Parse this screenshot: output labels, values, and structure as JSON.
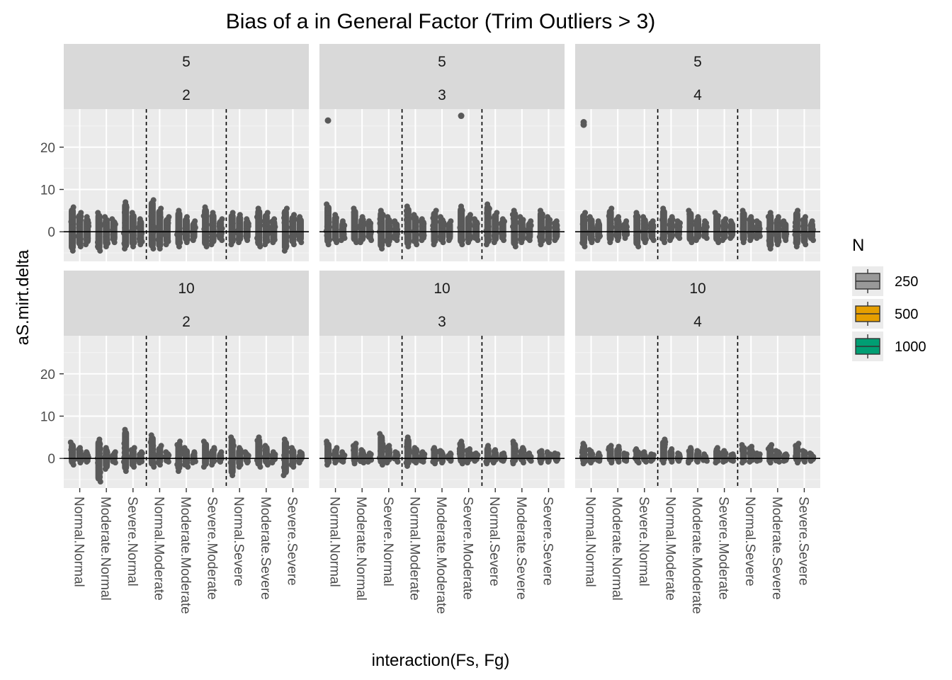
{
  "chart_data": {
    "type": "boxplot",
    "title": "Bias of a in General Factor (Trim Outliers > 3)",
    "xlabel": "interaction(Fs, Fg)",
    "ylabel": "aS.mirt.delta",
    "ylim": [
      -7,
      29
    ],
    "y_ticks": [
      0,
      10,
      20
    ],
    "categories": [
      "Normal.Normal",
      "Moderate.Normal",
      "Severe.Normal",
      "Normal.Moderate",
      "Moderate.Moderate",
      "Severe.Moderate",
      "Normal.Severe",
      "Moderate.Severe",
      "Severe.Severe"
    ],
    "reference_line_y": 0,
    "vlines_between_categories": [
      3.5,
      6.5
    ],
    "legend": {
      "title": "N",
      "placement": "right",
      "items": [
        {
          "label": "250",
          "color": "#999999"
        },
        {
          "label": "500",
          "color": "#E69F00"
        },
        {
          "label": "1000",
          "color": "#009E73"
        }
      ]
    },
    "point_color": "#595959",
    "facets": [
      {
        "top": "5",
        "bottom": "2",
        "ranges": [
          [
            [
              -4.5,
              5.8
            ],
            [
              -3.5,
              4.5
            ],
            [
              -3,
              3.5
            ]
          ],
          [
            [
              -4.5,
              4.5
            ],
            [
              -3.5,
              3.5
            ],
            [
              -2.5,
              3
            ]
          ],
          [
            [
              -4,
              7
            ],
            [
              -3.5,
              4.5
            ],
            [
              -3,
              3
            ]
          ],
          [
            [
              -4,
              7.5
            ],
            [
              -4,
              5.5
            ],
            [
              -3,
              3.5
            ]
          ],
          [
            [
              -3.5,
              5
            ],
            [
              -2.5,
              3.5
            ],
            [
              -2,
              2.5
            ]
          ],
          [
            [
              -3.5,
              5.8
            ],
            [
              -3,
              4.5
            ],
            [
              -2,
              3
            ]
          ],
          [
            [
              -3,
              4.5
            ],
            [
              -2.5,
              4
            ],
            [
              -2,
              3
            ]
          ],
          [
            [
              -3.5,
              5.5
            ],
            [
              -3,
              4.5
            ],
            [
              -2.5,
              3
            ]
          ],
          [
            [
              -4.5,
              5.5
            ],
            [
              -3,
              4
            ],
            [
              -2.5,
              3.5
            ]
          ]
        ],
        "outliers": []
      },
      {
        "top": "5",
        "bottom": "3",
        "ranges": [
          [
            [
              -3,
              6.5
            ],
            [
              -2.5,
              4
            ],
            [
              -2,
              2.5
            ]
          ],
          [
            [
              -2.5,
              5.5
            ],
            [
              -2.5,
              3.5
            ],
            [
              -2,
              2.5
            ]
          ],
          [
            [
              -4,
              5
            ],
            [
              -3,
              3.5
            ],
            [
              -2,
              2.5
            ]
          ],
          [
            [
              -3.5,
              6
            ],
            [
              -3,
              4
            ],
            [
              -2,
              3
            ]
          ],
          [
            [
              -3,
              5
            ],
            [
              -2.5,
              3.5
            ],
            [
              -2,
              2.5
            ]
          ],
          [
            [
              -3,
              6
            ],
            [
              -2.5,
              4
            ],
            [
              -2,
              3
            ]
          ],
          [
            [
              -3,
              6.5
            ],
            [
              -2.5,
              4.5
            ],
            [
              -2,
              3
            ]
          ],
          [
            [
              -3.5,
              5
            ],
            [
              -2.5,
              3.5
            ],
            [
              -2,
              2.5
            ]
          ],
          [
            [
              -3,
              5
            ],
            [
              -2.5,
              3.5
            ],
            [
              -2,
              2.5
            ]
          ]
        ],
        "outliers": [
          [
            0,
            26.3
          ],
          [
            5,
            27.4
          ]
        ]
      },
      {
        "top": "5",
        "bottom": "4",
        "ranges": [
          [
            [
              -3.5,
              4.5
            ],
            [
              -2.5,
              3.5
            ],
            [
              -2,
              2.5
            ]
          ],
          [
            [
              -2.5,
              5.5
            ],
            [
              -2,
              3.5
            ],
            [
              -1.5,
              2.5
            ]
          ],
          [
            [
              -3.5,
              4.5
            ],
            [
              -2.5,
              3.5
            ],
            [
              -2,
              2.5
            ]
          ],
          [
            [
              -2.5,
              5.5
            ],
            [
              -2,
              3.5
            ],
            [
              -1.5,
              2.5
            ]
          ],
          [
            [
              -2.5,
              5
            ],
            [
              -2,
              3.5
            ],
            [
              -1.5,
              2.5
            ]
          ],
          [
            [
              -2.5,
              4.5
            ],
            [
              -2,
              3
            ],
            [
              -1.5,
              2.5
            ]
          ],
          [
            [
              -2.5,
              5
            ],
            [
              -2,
              3.5
            ],
            [
              -1.5,
              2.5
            ]
          ],
          [
            [
              -4,
              4.5
            ],
            [
              -3,
              3.5
            ],
            [
              -2,
              2.5
            ]
          ],
          [
            [
              -3.5,
              5
            ],
            [
              -3,
              3.5
            ],
            [
              -2,
              2.5
            ]
          ]
        ],
        "outliers": [
          [
            0,
            25.3
          ],
          [
            0,
            25.9
          ]
        ]
      },
      {
        "top": "10",
        "bottom": "2",
        "ranges": [
          [
            [
              -1.5,
              3.8
            ],
            [
              -1,
              2.5
            ],
            [
              -0.8,
              1.5
            ]
          ],
          [
            [
              -5.5,
              4.5
            ],
            [
              -2.5,
              2.5
            ],
            [
              -1,
              1.5
            ]
          ],
          [
            [
              -3,
              6.8
            ],
            [
              -2,
              2.5
            ],
            [
              -1,
              1.5
            ]
          ],
          [
            [
              -2,
              5.5
            ],
            [
              -1.5,
              3
            ],
            [
              -0.8,
              1.5
            ]
          ],
          [
            [
              -3,
              4
            ],
            [
              -2,
              2.5
            ],
            [
              -1,
              1.5
            ]
          ],
          [
            [
              -2,
              4
            ],
            [
              -1.5,
              2.5
            ],
            [
              -0.8,
              1.5
            ]
          ],
          [
            [
              -4,
              5
            ],
            [
              -2,
              2.5
            ],
            [
              -1,
              1.5
            ]
          ],
          [
            [
              -2,
              5
            ],
            [
              -1.5,
              3
            ],
            [
              -1,
              1.5
            ]
          ],
          [
            [
              -4,
              4.5
            ],
            [
              -2,
              2.5
            ],
            [
              -1,
              1.5
            ]
          ]
        ],
        "outliers": []
      },
      {
        "top": "10",
        "bottom": "3",
        "ranges": [
          [
            [
              -1.5,
              4
            ],
            [
              -1,
              2.5
            ],
            [
              -0.8,
              1.5
            ]
          ],
          [
            [
              -1.2,
              3.5
            ],
            [
              -1,
              2
            ],
            [
              -0.8,
              1.2
            ]
          ],
          [
            [
              -1.5,
              5.8
            ],
            [
              -1,
              3
            ],
            [
              -0.8,
              1.5
            ]
          ],
          [
            [
              -1.8,
              5
            ],
            [
              -1,
              2.5
            ],
            [
              -0.8,
              1.5
            ]
          ],
          [
            [
              -1.2,
              2.5
            ],
            [
              -1,
              1.8
            ],
            [
              -0.6,
              1.2
            ]
          ],
          [
            [
              -1.2,
              4
            ],
            [
              -1,
              2.2
            ],
            [
              -0.6,
              1.2
            ]
          ],
          [
            [
              -1.2,
              3
            ],
            [
              -1,
              2
            ],
            [
              -0.6,
              1.2
            ]
          ],
          [
            [
              -1.2,
              4
            ],
            [
              -1,
              2.5
            ],
            [
              -0.6,
              1.2
            ]
          ],
          [
            [
              -1,
              1.8
            ],
            [
              -0.8,
              1.5
            ],
            [
              -0.6,
              1.2
            ]
          ]
        ],
        "outliers": []
      },
      {
        "top": "10",
        "bottom": "4",
        "ranges": [
          [
            [
              -1.2,
              3.5
            ],
            [
              -1,
              2
            ],
            [
              -0.6,
              1.2
            ]
          ],
          [
            [
              -1,
              3
            ],
            [
              -0.8,
              2.8
            ],
            [
              -0.6,
              1.2
            ]
          ],
          [
            [
              -1,
              2.2
            ],
            [
              -0.8,
              1.5
            ],
            [
              -0.6,
              1
            ]
          ],
          [
            [
              -1,
              4.5
            ],
            [
              -0.8,
              2.2
            ],
            [
              -0.6,
              1.2
            ]
          ],
          [
            [
              -1,
              2.5
            ],
            [
              -0.8,
              1.8
            ],
            [
              -0.6,
              1
            ]
          ],
          [
            [
              -1,
              2.5
            ],
            [
              -0.8,
              1.8
            ],
            [
              -0.6,
              1
            ]
          ],
          [
            [
              -1,
              3.2
            ],
            [
              -0.8,
              2.8
            ],
            [
              -0.6,
              1.2
            ]
          ],
          [
            [
              -1,
              3.2
            ],
            [
              -0.8,
              1.8
            ],
            [
              -0.6,
              1
            ]
          ],
          [
            [
              -1,
              3.5
            ],
            [
              -0.8,
              1.8
            ],
            [
              -0.6,
              1.2
            ]
          ]
        ],
        "outliers": []
      }
    ]
  }
}
